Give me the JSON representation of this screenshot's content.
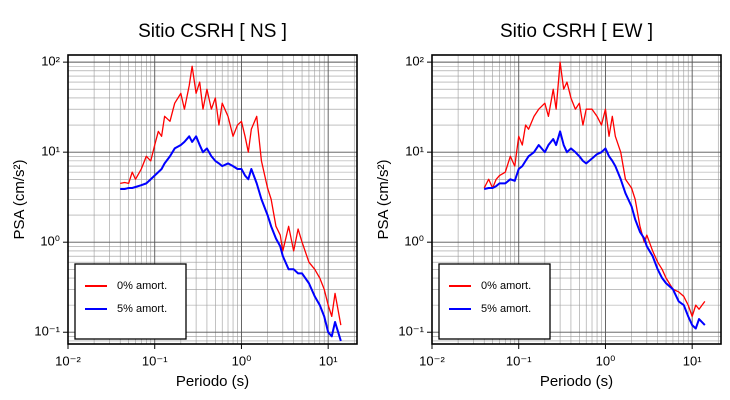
{
  "chart_data": [
    {
      "type": "line",
      "title": "Sitio CSRH [ NS ]",
      "x_label": "Periodo (s)",
      "y_label": "PSA (cm/s²)",
      "log_x": true,
      "log_y": true,
      "grid": true,
      "legend": "lower left",
      "xlim": [
        0.01,
        21.5
      ],
      "ylim": [
        0.074,
        120
      ],
      "xticks": [
        {
          "value": 0.01,
          "label": "10⁻²"
        },
        {
          "value": 0.1,
          "label": "10⁻¹"
        },
        {
          "value": 1,
          "label": "10⁰"
        },
        {
          "value": 10,
          "label": "10¹"
        }
      ],
      "yticks": [
        {
          "value": 0.1,
          "label": "10⁻¹"
        },
        {
          "value": 1,
          "label": "10⁰"
        },
        {
          "value": 10,
          "label": "10¹"
        },
        {
          "value": 100,
          "label": "10²"
        }
      ],
      "x": [
        0.04,
        0.045,
        0.05,
        0.055,
        0.06,
        0.07,
        0.08,
        0.09,
        0.1,
        0.11,
        0.12,
        0.13,
        0.15,
        0.17,
        0.2,
        0.22,
        0.25,
        0.27,
        0.3,
        0.33,
        0.36,
        0.4,
        0.45,
        0.5,
        0.55,
        0.6,
        0.7,
        0.8,
        0.9,
        1.0,
        1.1,
        1.2,
        1.3,
        1.5,
        1.7,
        2.0,
        2.2,
        2.5,
        2.8,
        3.0,
        3.5,
        4.0,
        4.5,
        5.0,
        6.0,
        7.0,
        8.0,
        9.0,
        10,
        11,
        12,
        14
      ],
      "series": [
        {
          "name": "0% amort.",
          "color": "#ff0000",
          "values": [
            4.5,
            4.6,
            4.5,
            6,
            5,
            6.5,
            9,
            8,
            12,
            17,
            15,
            25,
            22,
            35,
            45,
            30,
            55,
            90,
            45,
            60,
            30,
            50,
            30,
            40,
            20,
            35,
            25,
            15,
            20,
            22,
            15,
            10,
            18,
            25,
            8,
            4,
            3,
            1.5,
            1.2,
            0.8,
            1.5,
            0.8,
            1.4,
            1.0,
            0.6,
            0.5,
            0.4,
            0.3,
            0.2,
            0.15,
            0.27,
            0.12
          ]
        },
        {
          "name": "5% amort.",
          "color": "#0000ff",
          "values": [
            3.9,
            3.9,
            4,
            4,
            4.1,
            4.3,
            4.5,
            5,
            5.5,
            6,
            6.5,
            7.5,
            9,
            11,
            12,
            13,
            15,
            13,
            15,
            12,
            10,
            11,
            9,
            8,
            7.5,
            7,
            7.5,
            7,
            6.5,
            6.5,
            5.5,
            5,
            6.5,
            4.5,
            3,
            2,
            1.5,
            1.1,
            0.9,
            0.7,
            0.5,
            0.5,
            0.45,
            0.45,
            0.35,
            0.25,
            0.2,
            0.15,
            0.1,
            0.09,
            0.13,
            0.08
          ]
        }
      ]
    },
    {
      "type": "line",
      "title": "Sitio CSRH [ EW ]",
      "x_label": "Periodo (s)",
      "y_label": "PSA (cm/s²)",
      "log_x": true,
      "log_y": true,
      "grid": true,
      "legend": "lower left",
      "xlim": [
        0.01,
        21.5
      ],
      "ylim": [
        0.074,
        120
      ],
      "xticks": [
        {
          "value": 0.01,
          "label": "10⁻²"
        },
        {
          "value": 0.1,
          "label": "10⁻¹"
        },
        {
          "value": 1,
          "label": "10⁰"
        },
        {
          "value": 10,
          "label": "10¹"
        }
      ],
      "yticks": [
        {
          "value": 0.1,
          "label": "10⁻¹"
        },
        {
          "value": 1,
          "label": "10⁰"
        },
        {
          "value": 10,
          "label": "10¹"
        },
        {
          "value": 100,
          "label": "10²"
        }
      ],
      "x": [
        0.04,
        0.045,
        0.05,
        0.055,
        0.06,
        0.07,
        0.08,
        0.09,
        0.1,
        0.11,
        0.12,
        0.13,
        0.15,
        0.17,
        0.2,
        0.22,
        0.25,
        0.27,
        0.3,
        0.33,
        0.36,
        0.4,
        0.45,
        0.5,
        0.55,
        0.6,
        0.7,
        0.8,
        0.9,
        1.0,
        1.1,
        1.2,
        1.3,
        1.5,
        1.7,
        2.0,
        2.2,
        2.5,
        2.8,
        3.0,
        3.5,
        4.0,
        4.5,
        5.0,
        6.0,
        7.0,
        8.0,
        9.0,
        10,
        11,
        12,
        14
      ],
      "series": [
        {
          "name": "0% amort.",
          "color": "#ff0000",
          "values": [
            4,
            5,
            4,
            5,
            5.5,
            6,
            9,
            7,
            15,
            12,
            20,
            18,
            25,
            30,
            35,
            25,
            50,
            30,
            100,
            50,
            60,
            40,
            30,
            35,
            20,
            30,
            30,
            25,
            20,
            30,
            15,
            25,
            15,
            10,
            5,
            4,
            3,
            1.5,
            1.0,
            1.2,
            0.8,
            0.6,
            0.5,
            0.4,
            0.3,
            0.28,
            0.25,
            0.2,
            0.15,
            0.2,
            0.18,
            0.22
          ]
        },
        {
          "name": "5% amort.",
          "color": "#0000ff",
          "values": [
            3.9,
            4.0,
            4.0,
            4.2,
            4.5,
            4.5,
            5,
            4.8,
            6.5,
            7,
            8,
            9,
            10,
            12,
            10,
            12,
            14,
            12,
            17,
            12,
            10,
            11,
            10,
            9,
            8,
            7.5,
            8.5,
            9.5,
            10,
            11,
            9,
            8,
            7,
            5,
            3.5,
            2.5,
            1.8,
            1.3,
            1.1,
            0.9,
            0.7,
            0.5,
            0.4,
            0.35,
            0.3,
            0.22,
            0.2,
            0.15,
            0.12,
            0.11,
            0.14,
            0.12
          ]
        }
      ]
    }
  ]
}
